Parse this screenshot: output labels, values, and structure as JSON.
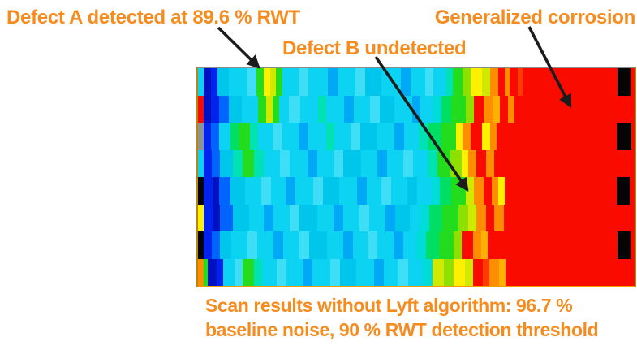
{
  "colors": {
    "annotation_text": "#f68b1e",
    "arrow": "#1c1c1c",
    "map_border": "#b8860b"
  },
  "annotations": {
    "defect_a": "Defect A detected at 89.6 % RWT",
    "defect_b": "Defect B undetected",
    "corrosion": "Generalized corrosion"
  },
  "caption": {
    "line1": "Scan results without Lyft algorithm: 96.7 %",
    "line2": "baseline noise, 90 % RWT detection threshold"
  },
  "chart_data": {
    "type": "heatmap",
    "title": "",
    "legend_position": "none",
    "grid": false,
    "colormap": "jet-style scan amplitude; cyan/blue = baseline, green-yellow = partial wall loss, red = heavy corrosion, black = data dropout",
    "palette": {
      "K": "#050505",
      "R": "#f90b00",
      "Q": "#ff3c00",
      "O": "#ff8d00",
      "P": "#ffb100",
      "Y": "#fdf100",
      "y": "#cfe900",
      "L": "#8ee000",
      "G": "#22dc1d",
      "F": "#00df63",
      "T": "#00e2b4",
      "U": "#00dcd8",
      "C": "#0cd3f1",
      "c": "#3edff6",
      "d": "#00c6ec",
      "A": "#00a9f5",
      "b": "#0064ff",
      "B": "#0023ee",
      "D": "#0011c2",
      "g": "#8e9494"
    },
    "rows": [
      [
        [
          7,
          "C"
        ],
        [
          9,
          "D"
        ],
        [
          8,
          "B"
        ],
        [
          14,
          "d"
        ],
        [
          22,
          "C"
        ],
        [
          12,
          "c"
        ],
        [
          9,
          "G"
        ],
        [
          8,
          "Y"
        ],
        [
          7,
          "y"
        ],
        [
          8,
          "G"
        ],
        [
          20,
          "C"
        ],
        [
          12,
          "c"
        ],
        [
          24,
          "C"
        ],
        [
          12,
          "A"
        ],
        [
          22,
          "C"
        ],
        [
          12,
          "c"
        ],
        [
          20,
          "d"
        ],
        [
          24,
          "C"
        ],
        [
          12,
          "A"
        ],
        [
          18,
          "C"
        ],
        [
          10,
          "c"
        ],
        [
          16,
          "C"
        ],
        [
          8,
          "T"
        ],
        [
          12,
          "G"
        ],
        [
          10,
          "L"
        ],
        [
          14,
          "Y"
        ],
        [
          10,
          "y"
        ],
        [
          10,
          "O"
        ],
        [
          8,
          "R"
        ],
        [
          6,
          "O"
        ],
        [
          10,
          "R"
        ],
        [
          6,
          "Q"
        ],
        [
          117,
          "R"
        ],
        [
          16,
          "K"
        ],
        [
          5,
          "R"
        ]
      ],
      [
        [
          7,
          "R"
        ],
        [
          9,
          "D"
        ],
        [
          10,
          "B"
        ],
        [
          12,
          "b"
        ],
        [
          16,
          "d"
        ],
        [
          20,
          "C"
        ],
        [
          10,
          "G"
        ],
        [
          8,
          "y"
        ],
        [
          8,
          "G"
        ],
        [
          12,
          "C"
        ],
        [
          14,
          "c"
        ],
        [
          22,
          "C"
        ],
        [
          10,
          "T"
        ],
        [
          22,
          "C"
        ],
        [
          12,
          "A"
        ],
        [
          20,
          "C"
        ],
        [
          12,
          "c"
        ],
        [
          18,
          "d"
        ],
        [
          22,
          "C"
        ],
        [
          10,
          "A"
        ],
        [
          16,
          "C"
        ],
        [
          10,
          "U"
        ],
        [
          12,
          "F"
        ],
        [
          18,
          "G"
        ],
        [
          10,
          "L"
        ],
        [
          12,
          "R"
        ],
        [
          12,
          "O"
        ],
        [
          8,
          "P"
        ],
        [
          10,
          "R"
        ],
        [
          8,
          "O"
        ],
        [
          148,
          "R"
        ]
      ],
      [
        [
          7,
          "g"
        ],
        [
          9,
          "B"
        ],
        [
          10,
          "b"
        ],
        [
          14,
          "C"
        ],
        [
          10,
          "F"
        ],
        [
          14,
          "G"
        ],
        [
          10,
          "T"
        ],
        [
          18,
          "C"
        ],
        [
          12,
          "c"
        ],
        [
          20,
          "C"
        ],
        [
          12,
          "A"
        ],
        [
          22,
          "C"
        ],
        [
          10,
          "T"
        ],
        [
          20,
          "C"
        ],
        [
          12,
          "c"
        ],
        [
          20,
          "d"
        ],
        [
          22,
          "C"
        ],
        [
          12,
          "A"
        ],
        [
          18,
          "C"
        ],
        [
          12,
          "T"
        ],
        [
          16,
          "F"
        ],
        [
          18,
          "G"
        ],
        [
          8,
          "Y"
        ],
        [
          10,
          "O"
        ],
        [
          14,
          "R"
        ],
        [
          10,
          "Y"
        ],
        [
          8,
          "O"
        ],
        [
          148,
          "R"
        ],
        [
          18,
          "K"
        ],
        [
          4,
          "R"
        ]
      ],
      [
        [
          7,
          "C"
        ],
        [
          10,
          "B"
        ],
        [
          10,
          "b"
        ],
        [
          16,
          "d"
        ],
        [
          12,
          "T"
        ],
        [
          14,
          "G"
        ],
        [
          12,
          "T"
        ],
        [
          20,
          "C"
        ],
        [
          12,
          "c"
        ],
        [
          22,
          "C"
        ],
        [
          12,
          "A"
        ],
        [
          20,
          "C"
        ],
        [
          12,
          "c"
        ],
        [
          22,
          "d"
        ],
        [
          20,
          "C"
        ],
        [
          12,
          "A"
        ],
        [
          20,
          "C"
        ],
        [
          12,
          "c"
        ],
        [
          18,
          "C"
        ],
        [
          12,
          "T"
        ],
        [
          16,
          "G"
        ],
        [
          14,
          "L"
        ],
        [
          8,
          "Y"
        ],
        [
          10,
          "O"
        ],
        [
          12,
          "R"
        ],
        [
          10,
          "O"
        ],
        [
          173,
          "R"
        ]
      ],
      [
        [
          7,
          "K"
        ],
        [
          11,
          "B"
        ],
        [
          8,
          "D"
        ],
        [
          14,
          "b"
        ],
        [
          18,
          "d"
        ],
        [
          20,
          "C"
        ],
        [
          12,
          "c"
        ],
        [
          18,
          "C"
        ],
        [
          12,
          "A"
        ],
        [
          22,
          "C"
        ],
        [
          12,
          "c"
        ],
        [
          20,
          "d"
        ],
        [
          22,
          "C"
        ],
        [
          12,
          "A"
        ],
        [
          18,
          "C"
        ],
        [
          12,
          "c"
        ],
        [
          20,
          "C"
        ],
        [
          12,
          "d"
        ],
        [
          18,
          "C"
        ],
        [
          10,
          "U"
        ],
        [
          14,
          "F"
        ],
        [
          18,
          "G"
        ],
        [
          10,
          "y"
        ],
        [
          12,
          "O"
        ],
        [
          10,
          "R"
        ],
        [
          8,
          "O"
        ],
        [
          8,
          "Y"
        ],
        [
          138,
          "R"
        ],
        [
          16,
          "K"
        ],
        [
          6,
          "R"
        ]
      ],
      [
        [
          7,
          "Y"
        ],
        [
          12,
          "B"
        ],
        [
          8,
          "D"
        ],
        [
          16,
          "b"
        ],
        [
          20,
          "d"
        ],
        [
          18,
          "C"
        ],
        [
          12,
          "A"
        ],
        [
          20,
          "C"
        ],
        [
          12,
          "c"
        ],
        [
          22,
          "d"
        ],
        [
          20,
          "C"
        ],
        [
          12,
          "A"
        ],
        [
          20,
          "C"
        ],
        [
          12,
          "c"
        ],
        [
          20,
          "C"
        ],
        [
          12,
          "A"
        ],
        [
          18,
          "d"
        ],
        [
          12,
          "C"
        ],
        [
          12,
          "U"
        ],
        [
          16,
          "F"
        ],
        [
          20,
          "G"
        ],
        [
          12,
          "L"
        ],
        [
          10,
          "y"
        ],
        [
          12,
          "O"
        ],
        [
          10,
          "R"
        ],
        [
          12,
          "O"
        ],
        [
          161,
          "R"
        ]
      ],
      [
        [
          7,
          "K"
        ],
        [
          10,
          "B"
        ],
        [
          10,
          "b"
        ],
        [
          14,
          "d"
        ],
        [
          20,
          "C"
        ],
        [
          12,
          "c"
        ],
        [
          20,
          "C"
        ],
        [
          12,
          "A"
        ],
        [
          20,
          "C"
        ],
        [
          12,
          "c"
        ],
        [
          22,
          "d"
        ],
        [
          20,
          "C"
        ],
        [
          12,
          "A"
        ],
        [
          18,
          "C"
        ],
        [
          12,
          "c"
        ],
        [
          20,
          "C"
        ],
        [
          12,
          "A"
        ],
        [
          16,
          "C"
        ],
        [
          12,
          "U"
        ],
        [
          16,
          "F"
        ],
        [
          18,
          "G"
        ],
        [
          10,
          "L"
        ],
        [
          14,
          "R"
        ],
        [
          10,
          "O"
        ],
        [
          8,
          "P"
        ],
        [
          160,
          "R"
        ],
        [
          16,
          "K"
        ],
        [
          5,
          "R"
        ]
      ],
      [
        [
          7,
          "O"
        ],
        [
          5,
          "G"
        ],
        [
          11,
          "D"
        ],
        [
          8,
          "B"
        ],
        [
          14,
          "C"
        ],
        [
          10,
          "c"
        ],
        [
          14,
          "G"
        ],
        [
          10,
          "T"
        ],
        [
          18,
          "C"
        ],
        [
          12,
          "c"
        ],
        [
          20,
          "C"
        ],
        [
          12,
          "A"
        ],
        [
          22,
          "C"
        ],
        [
          12,
          "c"
        ],
        [
          20,
          "d"
        ],
        [
          22,
          "C"
        ],
        [
          12,
          "A"
        ],
        [
          18,
          "C"
        ],
        [
          12,
          "c"
        ],
        [
          18,
          "C"
        ],
        [
          12,
          "U"
        ],
        [
          14,
          "y"
        ],
        [
          12,
          "L"
        ],
        [
          14,
          "Y"
        ],
        [
          10,
          "y"
        ],
        [
          12,
          "R"
        ],
        [
          8,
          "Q"
        ],
        [
          12,
          "O"
        ],
        [
          8,
          "P"
        ],
        [
          159,
          "R"
        ]
      ]
    ]
  }
}
